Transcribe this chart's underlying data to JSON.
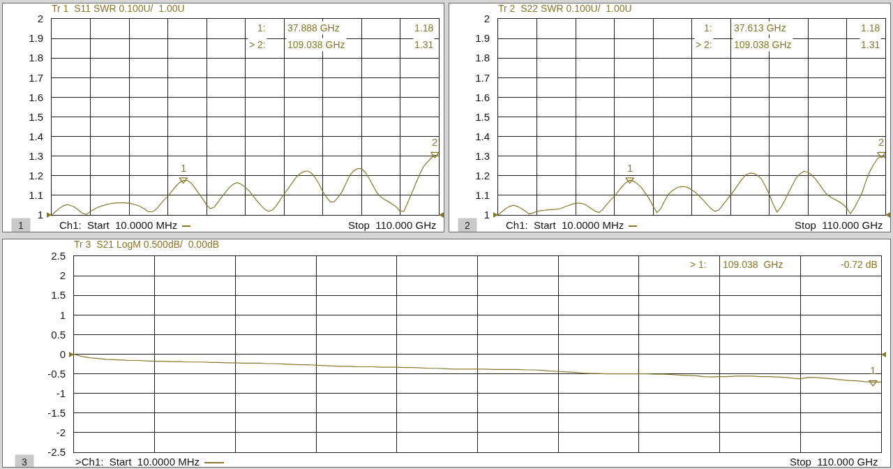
{
  "chart_data": [
    {
      "type": "line",
      "title": "Tr 1  S11 SWR 0.100U/  1.00U",
      "categories": [
        null,
        null,
        null,
        null,
        null,
        null,
        null,
        null,
        null,
        null,
        null,
        null,
        null,
        null,
        null,
        null,
        null,
        null,
        null,
        null,
        null,
        null,
        null,
        null,
        null,
        null,
        null,
        null,
        null,
        null,
        null,
        null,
        null,
        null,
        null,
        null,
        null,
        null,
        null,
        null,
        null,
        null,
        null,
        null,
        null,
        null,
        null,
        null,
        null,
        null,
        null,
        null,
        null,
        null,
        null,
        null,
        null,
        null,
        null,
        null,
        null,
        null,
        null,
        null,
        null,
        null,
        null,
        null,
        null,
        null,
        null,
        null,
        null,
        null,
        null,
        null,
        null,
        null,
        null,
        null,
        null,
        null,
        null,
        null,
        null,
        null,
        null,
        null,
        null,
        null,
        null,
        null,
        null,
        null,
        null,
        null,
        null,
        null,
        null,
        null,
        null
      ],
      "series": [
        {
          "color": "#8a7628",
          "values": [
            1.0,
            1.017,
            1.034,
            1.046,
            1.053,
            1.048,
            1.039,
            1.024,
            1.008,
            1.003,
            1.018,
            1.029,
            1.04,
            1.046,
            1.052,
            1.057,
            1.06,
            1.062,
            1.062,
            1.062,
            1.06,
            1.056,
            1.05,
            1.042,
            1.03,
            1.016,
            1.016,
            1.028,
            1.053,
            1.075,
            1.095,
            1.12,
            1.145,
            1.165,
            1.176,
            1.176,
            1.164,
            1.138,
            1.11,
            1.082,
            1.052,
            1.032,
            1.04,
            1.066,
            1.093,
            1.118,
            1.142,
            1.158,
            1.165,
            1.156,
            1.141,
            1.123,
            1.098,
            1.072,
            1.05,
            1.03,
            1.018,
            1.025,
            1.046,
            1.077,
            1.105,
            1.132,
            1.16,
            1.188,
            1.208,
            1.22,
            1.225,
            1.215,
            1.192,
            1.16,
            1.12,
            1.09,
            1.066,
            1.068,
            1.09,
            1.118,
            1.16,
            1.202,
            1.225,
            1.236,
            1.236,
            1.218,
            1.187,
            1.15,
            1.113,
            1.092,
            1.078,
            1.068,
            1.054,
            1.042,
            1.018,
            1.02,
            1.065,
            1.11,
            1.158,
            1.205,
            1.245,
            1.268,
            1.29,
            1.305,
            1.3
          ]
        },
        {
          "type": "scatter",
          "name": "1",
          "marker": "triangle",
          "color": "#8a7628",
          "values": [
            null,
            null,
            null,
            null,
            null,
            null,
            null,
            null,
            null,
            null,
            null,
            null,
            null,
            null,
            null,
            null,
            null,
            null,
            null,
            null,
            null,
            null,
            null,
            null,
            null,
            null,
            null,
            null,
            null,
            null,
            null,
            null,
            null,
            null,
            1.18,
            null,
            null,
            null,
            null,
            null,
            null,
            null,
            null,
            null,
            null,
            null,
            null,
            null,
            null,
            null,
            null,
            null,
            null,
            null,
            null,
            null,
            null,
            null,
            null,
            null,
            null,
            null,
            null,
            null,
            null,
            null,
            null,
            null,
            null,
            null,
            null,
            null,
            null,
            null,
            null,
            null,
            null,
            null,
            null,
            null,
            null,
            null,
            null,
            null,
            null,
            null,
            null,
            null,
            null,
            null,
            null,
            null,
            null,
            null,
            null,
            null,
            null,
            null,
            null,
            null,
            null
          ]
        },
        {
          "type": "scatter",
          "name": "2",
          "marker": "triangle",
          "color": "#8a7628",
          "values": [
            null,
            null,
            null,
            null,
            null,
            null,
            null,
            null,
            null,
            null,
            null,
            null,
            null,
            null,
            null,
            null,
            null,
            null,
            null,
            null,
            null,
            null,
            null,
            null,
            null,
            null,
            null,
            null,
            null,
            null,
            null,
            null,
            null,
            null,
            null,
            null,
            null,
            null,
            null,
            null,
            null,
            null,
            null,
            null,
            null,
            null,
            null,
            null,
            null,
            null,
            null,
            null,
            null,
            null,
            null,
            null,
            null,
            null,
            null,
            null,
            null,
            null,
            null,
            null,
            null,
            null,
            null,
            null,
            null,
            null,
            null,
            null,
            null,
            null,
            null,
            null,
            null,
            null,
            null,
            null,
            null,
            null,
            null,
            null,
            null,
            null,
            null,
            null,
            null,
            null,
            null,
            null,
            null,
            null,
            null,
            null,
            null,
            null,
            null,
            1.31,
            null
          ]
        }
      ],
      "ylim": [
        1,
        2
      ],
      "yticks": [
        1,
        1.1,
        1.2,
        1.3,
        1.4,
        1.5,
        1.6,
        1.7,
        1.8,
        1.9,
        2
      ],
      "grid": true,
      "tick_labels": "y",
      "annotations": [
        "1",
        "Ch1:  Start  10.0000 MHz",
        "Stop  110.000 GHz",
        "1:",
        "37.888 GHz",
        "1.18",
        "> 2:",
        "109.038 GHz",
        "1.31"
      ]
    },
    {
      "type": "line",
      "title": "Tr 2  S22 SWR 0.100U/  1.00U",
      "categories": [
        null,
        null,
        null,
        null,
        null,
        null,
        null,
        null,
        null,
        null,
        null,
        null,
        null,
        null,
        null,
        null,
        null,
        null,
        null,
        null,
        null,
        null,
        null,
        null,
        null,
        null,
        null,
        null,
        null,
        null,
        null,
        null,
        null,
        null,
        null,
        null,
        null,
        null,
        null,
        null,
        null,
        null,
        null,
        null,
        null,
        null,
        null,
        null,
        null,
        null,
        null,
        null,
        null,
        null,
        null,
        null,
        null,
        null,
        null,
        null,
        null,
        null,
        null,
        null,
        null,
        null,
        null,
        null,
        null,
        null,
        null,
        null,
        null,
        null,
        null,
        null,
        null,
        null,
        null,
        null,
        null,
        null,
        null,
        null,
        null,
        null,
        null,
        null,
        null,
        null,
        null,
        null,
        null,
        null,
        null,
        null,
        null,
        null,
        null,
        null,
        null
      ],
      "series": [
        {
          "color": "#8a7628",
          "values": [
            1.0,
            1.017,
            1.033,
            1.044,
            1.049,
            1.043,
            1.033,
            1.02,
            1.005,
            1.01,
            1.018,
            1.022,
            1.024,
            1.026,
            1.028,
            1.029,
            1.032,
            1.04,
            1.047,
            1.054,
            1.06,
            1.06,
            1.057,
            1.047,
            1.033,
            1.02,
            1.012,
            1.028,
            1.053,
            1.075,
            1.095,
            1.12,
            1.145,
            1.165,
            1.177,
            1.172,
            1.158,
            1.14,
            1.112,
            1.083,
            1.046,
            1.012,
            1.032,
            1.072,
            1.106,
            1.124,
            1.137,
            1.144,
            1.145,
            1.14,
            1.128,
            1.115,
            1.095,
            1.075,
            1.052,
            1.032,
            1.018,
            1.025,
            1.05,
            1.075,
            1.1,
            1.127,
            1.155,
            1.183,
            1.205,
            1.213,
            1.212,
            1.202,
            1.184,
            1.148,
            1.106,
            1.056,
            1.015,
            1.038,
            1.073,
            1.114,
            1.152,
            1.19,
            1.21,
            1.223,
            1.218,
            1.204,
            1.182,
            1.155,
            1.127,
            1.103,
            1.09,
            1.078,
            1.068,
            1.055,
            1.035,
            1.007,
            1.036,
            1.074,
            1.113,
            1.172,
            1.222,
            1.258,
            1.288,
            1.3,
            1.291
          ]
        },
        {
          "type": "scatter",
          "name": "1",
          "marker": "triangle",
          "color": "#8a7628",
          "values": [
            null,
            null,
            null,
            null,
            null,
            null,
            null,
            null,
            null,
            null,
            null,
            null,
            null,
            null,
            null,
            null,
            null,
            null,
            null,
            null,
            null,
            null,
            null,
            null,
            null,
            null,
            null,
            null,
            null,
            null,
            null,
            null,
            null,
            null,
            1.18,
            null,
            null,
            null,
            null,
            null,
            null,
            null,
            null,
            null,
            null,
            null,
            null,
            null,
            null,
            null,
            null,
            null,
            null,
            null,
            null,
            null,
            null,
            null,
            null,
            null,
            null,
            null,
            null,
            null,
            null,
            null,
            null,
            null,
            null,
            null,
            null,
            null,
            null,
            null,
            null,
            null,
            null,
            null,
            null,
            null,
            null,
            null,
            null,
            null,
            null,
            null,
            null,
            null,
            null,
            null,
            null,
            null,
            null,
            null,
            null,
            null,
            null,
            null,
            null,
            null,
            null
          ]
        },
        {
          "type": "scatter",
          "name": "2",
          "marker": "triangle",
          "color": "#8a7628",
          "values": [
            null,
            null,
            null,
            null,
            null,
            null,
            null,
            null,
            null,
            null,
            null,
            null,
            null,
            null,
            null,
            null,
            null,
            null,
            null,
            null,
            null,
            null,
            null,
            null,
            null,
            null,
            null,
            null,
            null,
            null,
            null,
            null,
            null,
            null,
            null,
            null,
            null,
            null,
            null,
            null,
            null,
            null,
            null,
            null,
            null,
            null,
            null,
            null,
            null,
            null,
            null,
            null,
            null,
            null,
            null,
            null,
            null,
            null,
            null,
            null,
            null,
            null,
            null,
            null,
            null,
            null,
            null,
            null,
            null,
            null,
            null,
            null,
            null,
            null,
            null,
            null,
            null,
            null,
            null,
            null,
            null,
            null,
            null,
            null,
            null,
            null,
            null,
            null,
            null,
            null,
            null,
            null,
            null,
            null,
            null,
            null,
            null,
            null,
            null,
            1.31,
            null
          ]
        }
      ],
      "ylim": [
        1,
        2
      ],
      "yticks": [
        1,
        1.1,
        1.2,
        1.3,
        1.4,
        1.5,
        1.6,
        1.7,
        1.8,
        1.9,
        2
      ],
      "grid": true,
      "tick_labels": "y",
      "annotations": [
        "2",
        "Ch1:  Start  10.0000 MHz",
        "Stop  110.000 GHz",
        "1:",
        "37.613 GHz",
        "1.18",
        "> 2:",
        "109.038 GHz",
        "1.31"
      ]
    },
    {
      "type": "line",
      "title": "Tr 3  S21 LogM 0.500dB/  0.00dB",
      "categories": [
        null,
        null,
        null,
        null,
        null,
        null,
        null,
        null,
        null,
        null,
        null,
        null,
        null,
        null,
        null,
        null,
        null,
        null,
        null,
        null,
        null,
        null,
        null,
        null,
        null,
        null,
        null,
        null,
        null,
        null,
        null,
        null,
        null,
        null,
        null,
        null,
        null,
        null,
        null,
        null,
        null,
        null,
        null,
        null,
        null,
        null,
        null,
        null,
        null,
        null,
        null,
        null,
        null,
        null,
        null,
        null,
        null,
        null,
        null,
        null,
        null,
        null,
        null,
        null,
        null,
        null,
        null,
        null,
        null,
        null,
        null,
        null,
        null,
        null,
        null,
        null,
        null,
        null,
        null,
        null,
        null,
        null,
        null,
        null,
        null,
        null,
        null,
        null,
        null,
        null,
        null,
        null,
        null,
        null,
        null,
        null,
        null,
        null,
        null,
        null,
        null
      ],
      "series": [
        {
          "color": "#8a7628",
          "values": [
            0.0,
            -0.06,
            -0.09,
            -0.11,
            -0.13,
            -0.14,
            -0.15,
            -0.16,
            -0.16,
            -0.17,
            -0.18,
            -0.18,
            -0.19,
            -0.19,
            -0.2,
            -0.2,
            -0.2,
            -0.21,
            -0.21,
            -0.22,
            -0.22,
            -0.23,
            -0.23,
            -0.23,
            -0.24,
            -0.24,
            -0.25,
            -0.26,
            -0.27,
            -0.27,
            -0.28,
            -0.29,
            -0.3,
            -0.31,
            -0.31,
            -0.32,
            -0.32,
            -0.32,
            -0.33,
            -0.33,
            -0.33,
            -0.34,
            -0.34,
            -0.35,
            -0.36,
            -0.36,
            -0.37,
            -0.38,
            -0.38,
            -0.38,
            -0.38,
            -0.38,
            -0.39,
            -0.39,
            -0.39,
            -0.39,
            -0.4,
            -0.4,
            -0.41,
            -0.43,
            -0.44,
            -0.45,
            -0.46,
            -0.48,
            -0.49,
            -0.49,
            -0.5,
            -0.5,
            -0.5,
            -0.5,
            -0.5,
            -0.5,
            -0.51,
            -0.51,
            -0.52,
            -0.53,
            -0.54,
            -0.55,
            -0.57,
            -0.58,
            -0.57,
            -0.57,
            -0.56,
            -0.56,
            -0.56,
            -0.57,
            -0.57,
            -0.58,
            -0.59,
            -0.61,
            -0.63,
            -0.59,
            -0.6,
            -0.61,
            -0.63,
            -0.65,
            -0.67,
            -0.68,
            -0.7,
            -0.71,
            -0.71
          ]
        },
        {
          "type": "scatter",
          "name": "1",
          "marker": "triangle",
          "color": "#8a7628",
          "values": [
            null,
            null,
            null,
            null,
            null,
            null,
            null,
            null,
            null,
            null,
            null,
            null,
            null,
            null,
            null,
            null,
            null,
            null,
            null,
            null,
            null,
            null,
            null,
            null,
            null,
            null,
            null,
            null,
            null,
            null,
            null,
            null,
            null,
            null,
            null,
            null,
            null,
            null,
            null,
            null,
            null,
            null,
            null,
            null,
            null,
            null,
            null,
            null,
            null,
            null,
            null,
            null,
            null,
            null,
            null,
            null,
            null,
            null,
            null,
            null,
            null,
            null,
            null,
            null,
            null,
            null,
            null,
            null,
            null,
            null,
            null,
            null,
            null,
            null,
            null,
            null,
            null,
            null,
            null,
            null,
            null,
            null,
            null,
            null,
            null,
            null,
            null,
            null,
            null,
            null,
            null,
            null,
            null,
            null,
            null,
            null,
            null,
            null,
            null,
            -0.72,
            null
          ]
        }
      ],
      "ylim": [
        -2.5,
        2.5
      ],
      "yticks": [
        -2.5,
        -2,
        -1.5,
        -1,
        -0.5,
        0,
        0.5,
        1,
        1.5,
        2,
        2.5
      ],
      "grid": true,
      "tick_labels": "y",
      "annotations": [
        "3",
        ">Ch1:  Start  10.0000 MHz",
        "Stop  110.000 GHz",
        "> 1:",
        "109.038  GHz",
        "-0.72 dB"
      ]
    }
  ]
}
